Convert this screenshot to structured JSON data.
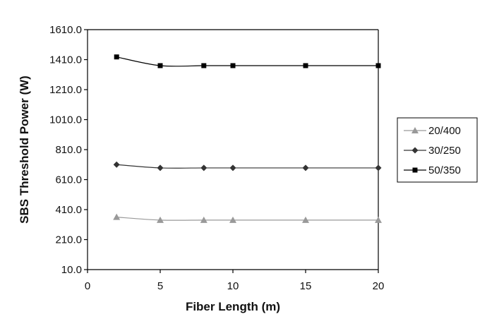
{
  "chart_data": {
    "type": "line",
    "xlabel": "Fiber Length (m)",
    "ylabel": "SBS Threshold Power (W)",
    "xlim": [
      0,
      20
    ],
    "ylim": [
      10,
      1610
    ],
    "xticks": [
      0,
      5,
      10,
      15,
      20
    ],
    "yticks": [
      10,
      210,
      410,
      610,
      810,
      1010,
      1210,
      1410,
      1610
    ],
    "ytick_labels": [
      "10.0",
      "210.0",
      "410.0",
      "610.0",
      "810.0",
      "1010.0",
      "1210.0",
      "1410.0",
      "1610.0"
    ],
    "xtick_labels": [
      "0",
      "5",
      "10",
      "15",
      "20"
    ],
    "grid": false,
    "legend_position": "right",
    "x": [
      2,
      5,
      8,
      10,
      15,
      20
    ],
    "series": [
      {
        "name": "20/400",
        "values": [
          360,
          340,
          340,
          340,
          340,
          340
        ],
        "color": "#999999",
        "marker": "triangle"
      },
      {
        "name": "30/250",
        "values": [
          710,
          688,
          688,
          688,
          688,
          688
        ],
        "color": "#333333",
        "marker": "diamond"
      },
      {
        "name": "50/350",
        "values": [
          1428,
          1370,
          1370,
          1370,
          1370,
          1370
        ],
        "color": "#000000",
        "marker": "square"
      }
    ]
  }
}
